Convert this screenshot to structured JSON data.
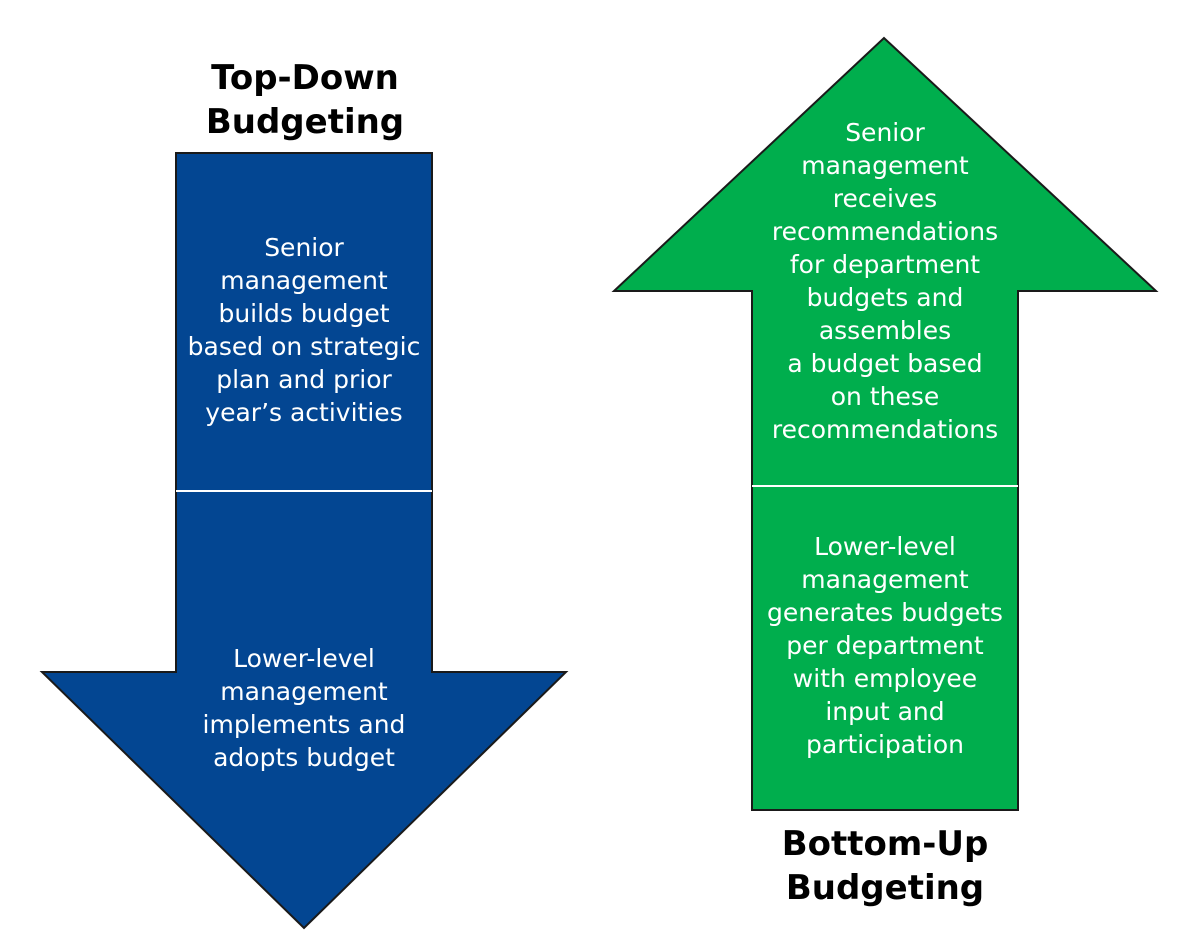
{
  "top_down": {
    "title_lines": [
      "Top-Down",
      "Budgeting"
    ],
    "senior_lines": [
      "Senior",
      "management",
      "builds budget",
      "based on strategic",
      "plan and prior",
      "year’s activities"
    ],
    "lower_lines": [
      "Lower-level",
      "management",
      "implements and",
      "adopts budget"
    ],
    "color": "#034692"
  },
  "bottom_up": {
    "title_lines": [
      "Bottom-Up",
      "Budgeting"
    ],
    "senior_lines": [
      "Senior",
      "management",
      "receives",
      "recommendations",
      "for department",
      "budgets and",
      "assembles",
      "a budget based",
      "on these",
      "recommendations"
    ],
    "lower_lines": [
      "Lower-level",
      "management",
      "generates budgets",
      "per department",
      "with employee",
      "input and",
      "participation"
    ],
    "color": "#00AE4D"
  }
}
